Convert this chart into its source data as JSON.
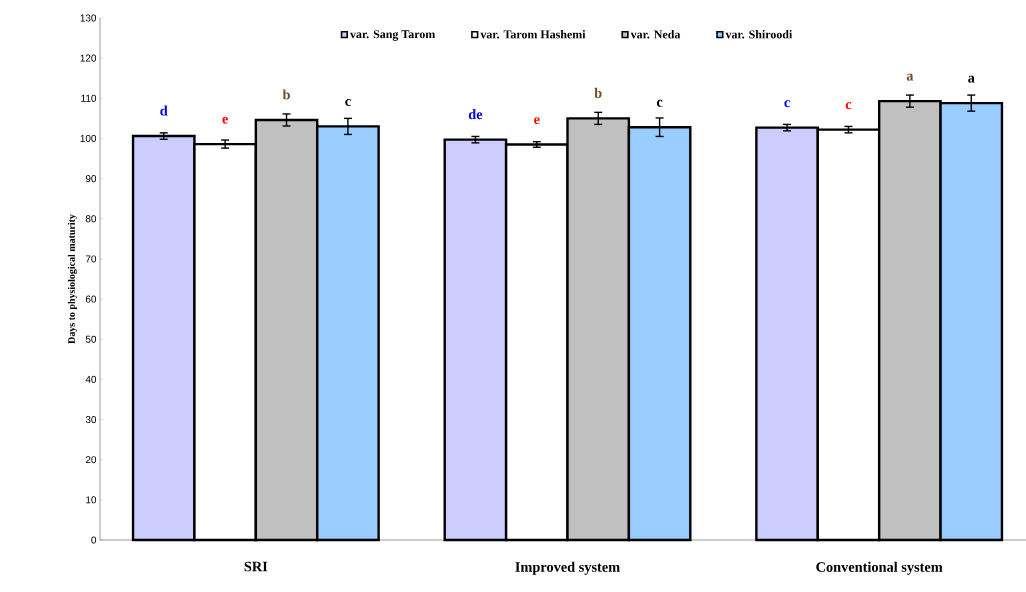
{
  "chart_data": {
    "type": "bar",
    "ylabel": "Days to physiological maturity",
    "categories": [
      "SRI",
      "Improved system",
      "Conventional system"
    ],
    "series": [
      {
        "name": "var. Sang Tarom",
        "color": "#ccccff",
        "values": [
          100.6,
          99.7,
          102.7
        ],
        "errors": [
          0.8,
          0.8,
          0.8
        ],
        "value_labels": [
          "d",
          "de",
          "c"
        ]
      },
      {
        "name": "var. Tarom Hashemi",
        "color": "#ffffff",
        "values": [
          98.6,
          98.5,
          102.2
        ],
        "errors": [
          1.0,
          0.7,
          0.8
        ],
        "value_labels": [
          "e",
          "e",
          "c"
        ]
      },
      {
        "name": "var. Neda",
        "color": "#c0c0c0",
        "values": [
          104.6,
          105.0,
          109.3
        ],
        "errors": [
          1.5,
          1.5,
          1.5
        ],
        "value_labels": [
          "b",
          "b",
          "a"
        ]
      },
      {
        "name": "var. Shiroodi",
        "color": "#99ccff",
        "values": [
          103.0,
          102.8,
          108.8
        ],
        "errors": [
          2.0,
          2.3,
          2.0
        ],
        "value_labels": [
          "c",
          "c",
          "a"
        ]
      }
    ],
    "ylim": [
      0,
      130
    ],
    "yticks": [
      0,
      10,
      20,
      30,
      40,
      50,
      60,
      70,
      80,
      90,
      100,
      110,
      120,
      130
    ],
    "grid": false,
    "legend": "top"
  }
}
